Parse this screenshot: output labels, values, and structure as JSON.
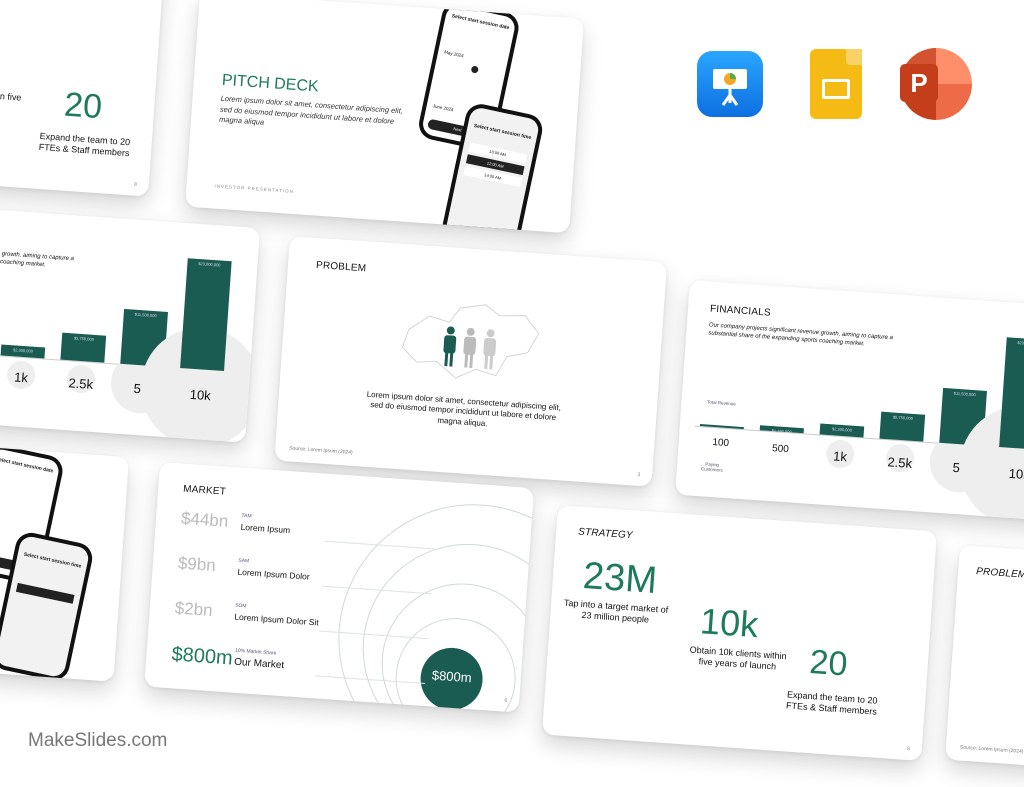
{
  "brand": "MakeSlides.com",
  "app_icons": [
    {
      "name": "keynote-icon",
      "color": "#1a8cf0"
    },
    {
      "name": "google-slides-icon",
      "color": "#f5ba14"
    },
    {
      "name": "powerpoint-icon",
      "color": "#d24726"
    }
  ],
  "accent_color": "#1a5c52",
  "strategy": {
    "title": "STRATEGY",
    "stats": [
      {
        "value": "23M",
        "caption": "Tap into a target market of 23 million people"
      },
      {
        "value": "10k",
        "caption": "Obtain 10k clients within five years of launch"
      },
      {
        "value": "20",
        "caption": "Expand the team to 20 FTEs & Staff members"
      }
    ]
  },
  "pitch_deck": {
    "title": "PITCH DECK",
    "body": "Lorem ipsum dolor sit amet, consectetur adipiscing elit, sed do eiusmod tempor incididunt ut labore et dolore magna aliqua",
    "footer": "INVESTOR PRESENTATION",
    "phone1": {
      "heading": "Select start session date",
      "month1": "May 2024",
      "month2": "June 2024",
      "button": "Next"
    },
    "phone2": {
      "heading": "Select start session time",
      "slots": [
        "10:00 AM",
        "12:00 AM",
        "14:00 AM"
      ]
    }
  },
  "financials": {
    "title": "FINANCIALS",
    "description": "Our company projects significant revenue growth, aiming to capture a substantial share of the expanding sports coaching market.",
    "revenue_label": "Total Revenue",
    "customers_label": "Paying Customers",
    "bars": [
      {
        "customers": "100",
        "revenue": 230000,
        "label": ""
      },
      {
        "customers": "500",
        "revenue": 1150000,
        "label": "$1,150,000"
      },
      {
        "customers": "1k",
        "revenue": 2300000,
        "label": "$2,300,000"
      },
      {
        "customers": "2.5k",
        "revenue": 5750000,
        "label": "$5,750,000"
      },
      {
        "customers": "5k",
        "revenue": 11500000,
        "label": "$11,500,000"
      },
      {
        "customers": "10k",
        "revenue": 23000000,
        "label": "$23,000,000"
      }
    ]
  },
  "problem": {
    "title": "PROBLEM",
    "body": "Lorem ipsum dolor sit amet, consectetur adipiscing elit, sed do eiusmod tempor incididunt ut labore et dolore magna aliqua.",
    "source": "Source: Lorem Ipsum (2024)"
  },
  "market": {
    "title": "MARKET",
    "rows": [
      {
        "value": "$44bn",
        "tag": "TAM",
        "label": "Lorem Ipsum"
      },
      {
        "value": "$9bn",
        "tag": "SAM",
        "label": "Lorem Ipsum Dolor"
      },
      {
        "value": "$2bn",
        "tag": "SOM",
        "label": "Lorem Ipsum Dolor Sit"
      },
      {
        "value": "$800m",
        "tag": "10% Market Share",
        "label": "Our Market"
      }
    ],
    "circle_label": "$800m"
  }
}
